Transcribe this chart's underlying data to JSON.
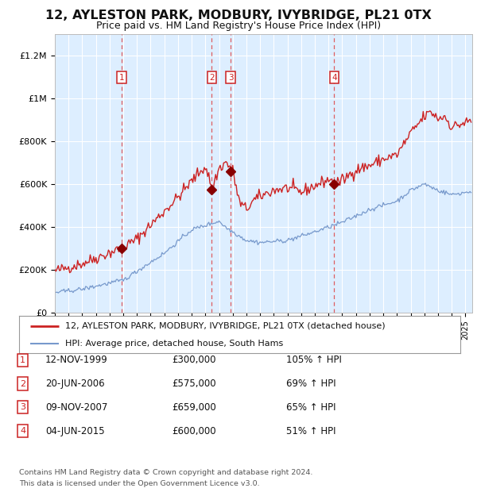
{
  "title": "12, AYLESTON PARK, MODBURY, IVYBRIDGE, PL21 0TX",
  "subtitle": "Price paid vs. HM Land Registry's House Price Index (HPI)",
  "background_color": "#ffffff",
  "plot_bg_color": "#ddeeff",
  "ylim": [
    0,
    1300000
  ],
  "yticks": [
    0,
    200000,
    400000,
    600000,
    800000,
    1000000,
    1200000
  ],
  "ytick_labels": [
    "£0",
    "£200K",
    "£400K",
    "£600K",
    "£800K",
    "£1M",
    "£1.2M"
  ],
  "sale_events": [
    {
      "label": "1",
      "date_x": 1999.87,
      "price": 300000
    },
    {
      "label": "2",
      "date_x": 2006.47,
      "price": 575000
    },
    {
      "label": "3",
      "date_x": 2007.85,
      "price": 659000
    },
    {
      "label": "4",
      "date_x": 2015.42,
      "price": 600000
    }
  ],
  "legend_line1": "12, AYLESTON PARK, MODBURY, IVYBRIDGE, PL21 0TX (detached house)",
  "legend_line2": "HPI: Average price, detached house, South Hams",
  "legend_color1": "#cc2222",
  "legend_color2": "#7799cc",
  "table_rows": [
    {
      "num": "1",
      "date": "12-NOV-1999",
      "price": "£300,000",
      "hpi": "105% ↑ HPI"
    },
    {
      "num": "2",
      "date": "20-JUN-2006",
      "price": "£575,000",
      "hpi": "69% ↑ HPI"
    },
    {
      "num": "3",
      "date": "09-NOV-2007",
      "price": "£659,000",
      "hpi": "65% ↑ HPI"
    },
    {
      "num": "4",
      "date": "04-JUN-2015",
      "price": "£600,000",
      "hpi": "51% ↑ HPI"
    }
  ],
  "footnote_line1": "Contains HM Land Registry data © Crown copyright and database right 2024.",
  "footnote_line2": "This data is licensed under the Open Government Licence v3.0.",
  "xmin": 1995.0,
  "xmax": 2025.5,
  "red_color": "#cc2222",
  "blue_color": "#7799cc",
  "marker_color": "#880000",
  "vline_color": "#dd4444"
}
